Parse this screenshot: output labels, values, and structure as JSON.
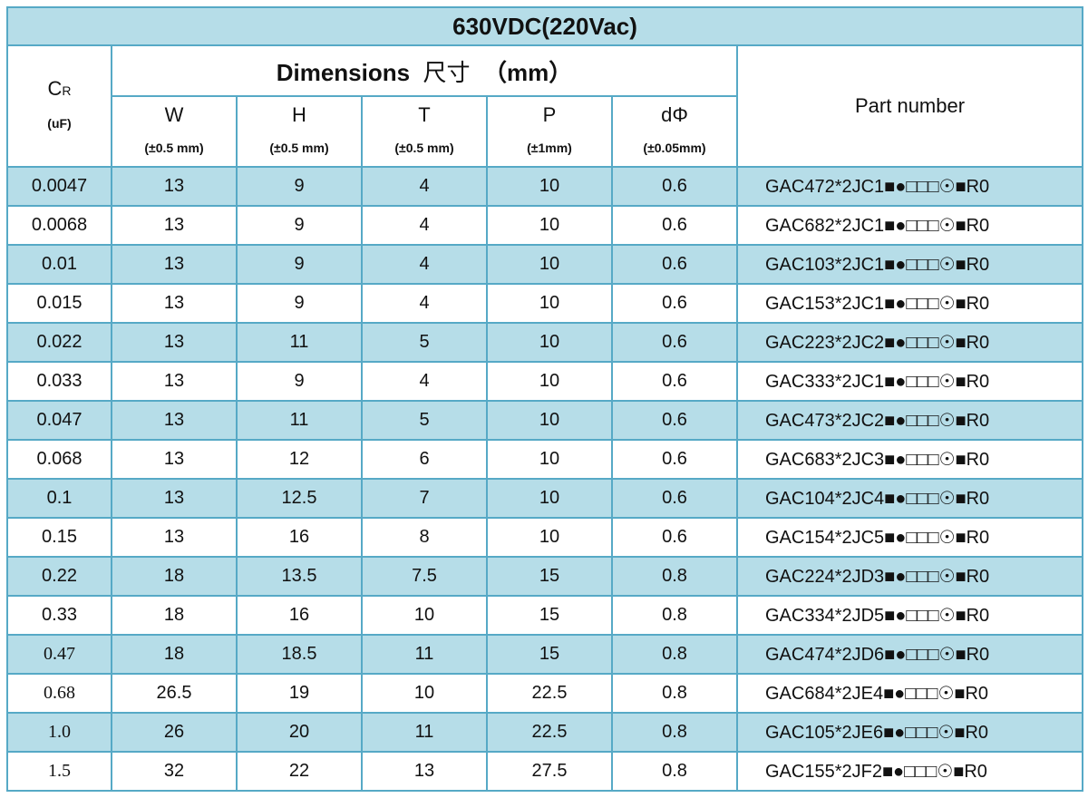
{
  "title": "630VDC(220Vac)",
  "header": {
    "cr_main": "C",
    "cr_sub": "R",
    "cr_unit": "(uF)",
    "dimensions_label": "Dimensions",
    "dimensions_cn": "尺寸",
    "dimensions_unit": "（mm）",
    "part_number": "Part number",
    "columns": [
      {
        "label": "W",
        "tolerance": "(±0.5 mm)"
      },
      {
        "label": "H",
        "tolerance": "(±0.5 mm)"
      },
      {
        "label": "T",
        "tolerance": "(±0.5 mm)"
      },
      {
        "label": "P",
        "tolerance": "(±1mm)"
      },
      {
        "label": "dΦ",
        "tolerance": "(±0.05mm)"
      }
    ]
  },
  "rows": [
    {
      "cr": "0.0047",
      "w": "13",
      "h": "9",
      "t": "4",
      "p": "10",
      "d": "0.6",
      "part": "GAC472*2JC1■●□□□☉■R0"
    },
    {
      "cr": "0.0068",
      "w": "13",
      "h": "9",
      "t": "4",
      "p": "10",
      "d": "0.6",
      "part": "GAC682*2JC1■●□□□☉■R0"
    },
    {
      "cr": "0.01",
      "w": "13",
      "h": "9",
      "t": "4",
      "p": "10",
      "d": "0.6",
      "part": "GAC103*2JC1■●□□□☉■R0"
    },
    {
      "cr": "0.015",
      "w": "13",
      "h": "9",
      "t": "4",
      "p": "10",
      "d": "0.6",
      "part": "GAC153*2JC1■●□□□☉■R0"
    },
    {
      "cr": "0.022",
      "w": "13",
      "h": "11",
      "t": "5",
      "p": "10",
      "d": "0.6",
      "part": "GAC223*2JC2■●□□□☉■R0"
    },
    {
      "cr": "0.033",
      "w": "13",
      "h": "9",
      "t": "4",
      "p": "10",
      "d": "0.6",
      "part": "GAC333*2JC1■●□□□☉■R0"
    },
    {
      "cr": "0.047",
      "w": "13",
      "h": "11",
      "t": "5",
      "p": "10",
      "d": "0.6",
      "part": "GAC473*2JC2■●□□□☉■R0"
    },
    {
      "cr": "0.068",
      "w": "13",
      "h": "12",
      "t": "6",
      "p": "10",
      "d": "0.6",
      "part": "GAC683*2JC3■●□□□☉■R0"
    },
    {
      "cr": "0.1",
      "w": "13",
      "h": "12.5",
      "t": "7",
      "p": "10",
      "d": "0.6",
      "part": "GAC104*2JC4■●□□□☉■R0"
    },
    {
      "cr": "0.15",
      "w": "13",
      "h": "16",
      "t": "8",
      "p": "10",
      "d": "0.6",
      "part": "GAC154*2JC5■●□□□☉■R0"
    },
    {
      "cr": "0.22",
      "w": "18",
      "h": "13.5",
      "t": "7.5",
      "p": "15",
      "d": "0.8",
      "part": "GAC224*2JD3■●□□□☉■R0"
    },
    {
      "cr": "0.33",
      "w": "18",
      "h": "16",
      "t": "10",
      "p": "15",
      "d": "0.8",
      "part": "GAC334*2JD5■●□□□☉■R0"
    },
    {
      "cr": "0.47",
      "w": "18",
      "h": "18.5",
      "t": "11",
      "p": "15",
      "d": "0.8",
      "part": "GAC474*2JD6■●□□□☉■R0"
    },
    {
      "cr": "0.68",
      "w": "26.5",
      "h": "19",
      "t": "10",
      "p": "22.5",
      "d": "0.8",
      "part": "GAC684*2JE4■●□□□☉■R0"
    },
    {
      "cr": "1.0",
      "w": "26",
      "h": "20",
      "t": "11",
      "p": "22.5",
      "d": "0.8",
      "part": "GAC105*2JE6■●□□□☉■R0"
    },
    {
      "cr": "1.5",
      "w": "32",
      "h": "22",
      "t": "13",
      "p": "27.5",
      "d": "0.8",
      "part": "GAC155*2JF2■●□□□☉■R0"
    }
  ],
  "colors": {
    "border": "#56a9c6",
    "band": "#b6dde8"
  }
}
